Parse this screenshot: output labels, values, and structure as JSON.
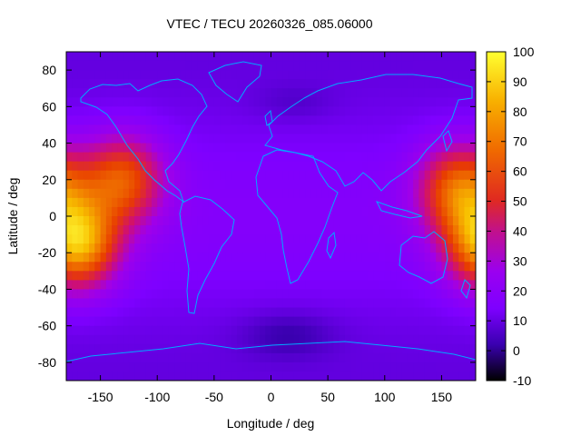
{
  "chart_data": {
    "type": "heatmap",
    "title": "VTEC / TECU 20260326_085.06000",
    "xlabel": "Longitude / deg",
    "ylabel": "Latitude / deg",
    "xlim": [
      -180,
      180
    ],
    "ylim": [
      -90,
      90
    ],
    "x_ticks": [
      -150,
      -100,
      -50,
      0,
      50,
      100,
      150
    ],
    "y_ticks": [
      -80,
      -60,
      -40,
      -20,
      0,
      20,
      40,
      60,
      80
    ],
    "colorbar": {
      "min": -10,
      "max": 100,
      "ticks": [
        -10,
        0,
        10,
        20,
        30,
        40,
        50,
        60,
        70,
        80,
        90,
        100
      ],
      "palette": [
        "#000000",
        "#3a00b0",
        "#7e00ff",
        "#a000e8",
        "#d01070",
        "#e83c00",
        "#f07800",
        "#f8c000",
        "#ffff40"
      ]
    },
    "grid": false,
    "legend": "colorbar-right",
    "overlay": "coastlines",
    "field_description_peaks": [
      {
        "lon": -170,
        "lat": -15,
        "value": 85
      },
      {
        "lon": 165,
        "lat": 15,
        "value": 68
      },
      {
        "lon": -130,
        "lat": 20,
        "value": 65
      }
    ]
  }
}
